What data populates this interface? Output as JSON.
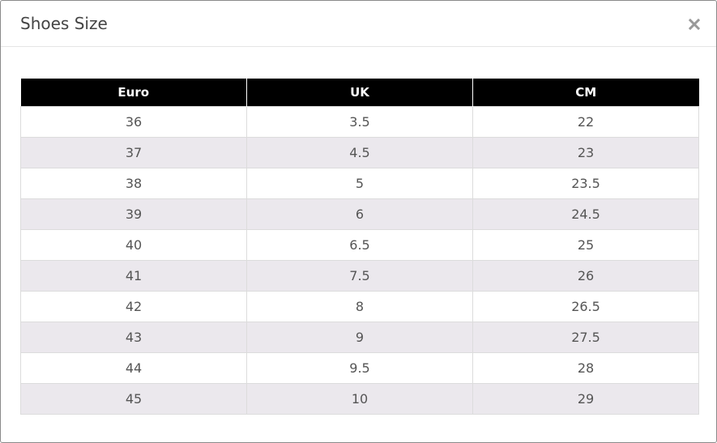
{
  "modal": {
    "title": "Shoes Size",
    "close_icon": "close-icon"
  },
  "table": {
    "headers": [
      "Euro",
      "UK",
      "CM"
    ],
    "rows": [
      [
        "36",
        "3.5",
        "22"
      ],
      [
        "37",
        "4.5",
        "23"
      ],
      [
        "38",
        "5",
        "23.5"
      ],
      [
        "39",
        "6",
        "24.5"
      ],
      [
        "40",
        "6.5",
        "25"
      ],
      [
        "41",
        "7.5",
        "26"
      ],
      [
        "42",
        "8",
        "26.5"
      ],
      [
        "43",
        "9",
        "27.5"
      ],
      [
        "44",
        "9.5",
        "28"
      ],
      [
        "45",
        "10",
        "29"
      ]
    ]
  },
  "colors": {
    "header_bg": "#000000",
    "stripe_bg": "#ebe8ed"
  }
}
